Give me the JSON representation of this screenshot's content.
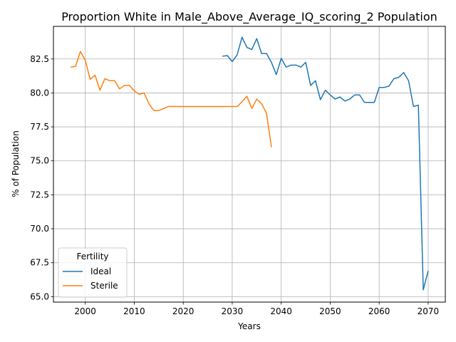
{
  "chart_data": {
    "type": "line",
    "title": "Proportion White in Male_Above_Average_IQ_scoring_2 Population",
    "xlabel": "Years",
    "ylabel": "% of Population",
    "xlim": [
      1993.5,
      2073.5
    ],
    "ylim": [
      64.6,
      84.9
    ],
    "x_ticks": [
      2000,
      2010,
      2020,
      2030,
      2040,
      2050,
      2060,
      2070
    ],
    "y_ticks": [
      65.0,
      67.5,
      70.0,
      72.5,
      75.0,
      77.5,
      80.0,
      82.5
    ],
    "grid": true,
    "legend": {
      "title": "Fertility",
      "placement": "lower-left"
    },
    "series": [
      {
        "name": "Ideal",
        "color": "#1f77b4",
        "x": [
          2028,
          2029,
          2030,
          2031,
          2032,
          2033,
          2034,
          2035,
          2036,
          2037,
          2038,
          2039,
          2040,
          2041,
          2042,
          2043,
          2044,
          2045,
          2046,
          2047,
          2048,
          2049,
          2050,
          2051,
          2052,
          2053,
          2054,
          2055,
          2056,
          2057,
          2058,
          2059,
          2060,
          2061,
          2062,
          2063,
          2064,
          2065,
          2066,
          2067,
          2068,
          2069,
          2070
        ],
        "y": [
          82.7,
          82.75,
          82.3,
          82.8,
          84.1,
          83.35,
          83.2,
          84.0,
          82.9,
          82.9,
          82.25,
          81.35,
          82.55,
          81.9,
          82.05,
          82.05,
          81.9,
          82.25,
          80.55,
          80.9,
          79.5,
          80.2,
          79.85,
          79.55,
          79.7,
          79.4,
          79.55,
          79.85,
          79.85,
          79.3,
          79.3,
          79.3,
          80.4,
          80.4,
          80.5,
          81.05,
          81.15,
          81.5,
          80.9,
          79.0,
          79.1,
          65.5,
          66.9
        ]
      },
      {
        "name": "Sterile",
        "color": "#ff7f0e",
        "x": [
          1997,
          1998,
          1999,
          2000,
          2001,
          2002,
          2003,
          2004,
          2005,
          2006,
          2007,
          2008,
          2009,
          2010,
          2011,
          2012,
          2013,
          2014,
          2015,
          2016,
          2017,
          2018,
          2019,
          2020,
          2021,
          2022,
          2023,
          2024,
          2025,
          2026,
          2027,
          2028,
          2029,
          2030,
          2031,
          2032,
          2033,
          2034,
          2035,
          2036,
          2037,
          2038
        ],
        "y": [
          81.9,
          81.95,
          83.05,
          82.4,
          81.0,
          81.3,
          80.2,
          81.05,
          80.9,
          80.9,
          80.3,
          80.55,
          80.55,
          80.15,
          79.9,
          80.0,
          79.2,
          78.7,
          78.7,
          78.85,
          79.0,
          79.0,
          79.0,
          79.0,
          79.0,
          79.0,
          79.0,
          79.0,
          79.0,
          79.0,
          79.0,
          79.0,
          79.0,
          79.0,
          79.0,
          79.35,
          79.75,
          78.85,
          79.55,
          79.2,
          78.5,
          76.0
        ]
      }
    ]
  }
}
